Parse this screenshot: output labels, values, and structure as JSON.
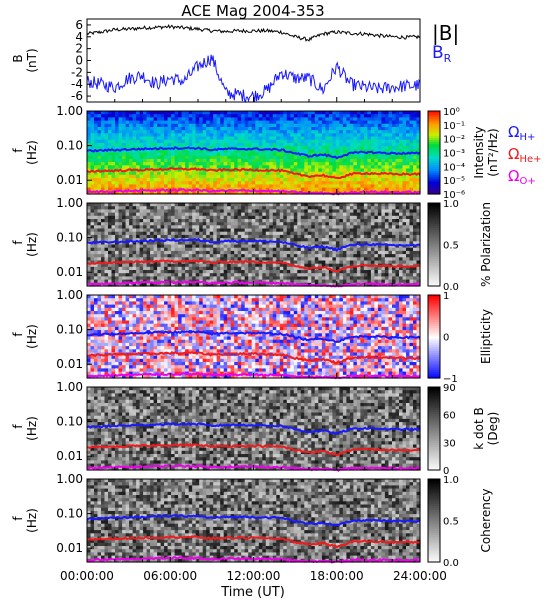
{
  "chart_data": {
    "title": "ACE Mag 2004-353",
    "type": "line",
    "xlabel": "Time (UT)",
    "x_range_hours": [
      0,
      24
    ],
    "x_ticks": [
      "00:00:00",
      "06:00:00",
      "12:00:00",
      "18:00:00",
      "24:00:00"
    ],
    "panels": [
      {
        "kind": "timeseries",
        "ylabel_main": "B",
        "ylabel_unit": "(nT)",
        "ylim": [
          -7,
          7
        ],
        "y_ticks": [
          "6",
          "4",
          "2",
          "0",
          "-2",
          "-4",
          "-6"
        ],
        "series": [
          {
            "name": "|B|",
            "color": "#000000",
            "x": [
              0,
              1,
              2,
              3,
              4,
              5,
              6,
              7,
              8,
              9,
              10,
              11,
              12,
              13,
              14,
              15,
              16,
              17,
              18,
              19,
              20,
              21,
              22,
              23,
              24
            ],
            "y": [
              4.5,
              4.8,
              5.2,
              5.3,
              5.5,
              5.6,
              5.7,
              5.5,
              5.3,
              5.0,
              4.9,
              5.0,
              5.0,
              5.0,
              4.8,
              4.0,
              3.5,
              4.5,
              4.8,
              4.6,
              4.5,
              4.2,
              4.0,
              3.9,
              4.0
            ]
          },
          {
            "name": "B",
            "sub": "R",
            "color": "#1a1aff",
            "x": [
              0,
              1,
              2,
              3,
              4,
              5,
              6,
              7,
              8,
              9,
              10,
              11,
              12,
              13,
              14,
              15,
              16,
              17,
              18,
              19,
              20,
              21,
              22,
              23,
              24
            ],
            "y": [
              -3.5,
              -4,
              -4.5,
              -3,
              -2.5,
              -4,
              -3,
              -3.5,
              -1,
              0.5,
              -5.5,
              -5.8,
              -6,
              -5,
              -2,
              -3,
              -3,
              -5,
              -1,
              -4,
              -4.5,
              -4.8,
              -4.5,
              -4.3,
              -4.2
            ]
          }
        ]
      },
      {
        "kind": "spectrogram",
        "colormap": "rainbow",
        "ylabel_main": "f",
        "ylabel_unit": "(Hz)",
        "y_scale": "log",
        "ylim": [
          0.004,
          1.0
        ],
        "y_ticks": [
          "1.00",
          "0.10",
          "0.01"
        ],
        "colorbar_ticks": [
          "10⁰",
          "10⁻¹",
          "10⁻²",
          "10⁻³",
          "10⁻⁴",
          "10⁻⁵",
          "10⁻⁶"
        ],
        "colorbar_label": [
          "Intensity",
          "(nT²/Hz)"
        ],
        "legend": [
          {
            "symbol": "Ω",
            "sub": "H+",
            "color": "#1a1aff"
          },
          {
            "symbol": "Ω",
            "sub": "He+",
            "color": "#ee1c1c"
          },
          {
            "symbol": "Ω",
            "sub": "O+",
            "color": "#ee00ee"
          }
        ]
      },
      {
        "kind": "spectrogram",
        "colormap": "gray",
        "ylabel_main": "f",
        "ylabel_unit": "(Hz)",
        "y_scale": "log",
        "ylim": [
          0.004,
          1.0
        ],
        "y_ticks": [
          "1.00",
          "0.10",
          "0.01"
        ],
        "colorbar_ticks": [
          "1.0",
          "0.5",
          "0.0"
        ],
        "colorbar_label": [
          "% Polarization"
        ]
      },
      {
        "kind": "spectrogram",
        "colormap": "bwr",
        "ylabel_main": "f",
        "ylabel_unit": "(Hz)",
        "y_scale": "log",
        "ylim": [
          0.004,
          1.0
        ],
        "y_ticks": [
          "1.00",
          "0.10",
          "0.01"
        ],
        "colorbar_ticks": [
          "1",
          "0",
          "−1"
        ],
        "colorbar_label": [
          "Ellipticity"
        ]
      },
      {
        "kind": "spectrogram",
        "colormap": "gray_r",
        "ylabel_main": "f",
        "ylabel_unit": "(Hz)",
        "y_scale": "log",
        "ylim": [
          0.004,
          1.0
        ],
        "y_ticks": [
          "1.00",
          "0.10",
          "0.01"
        ],
        "colorbar_ticks": [
          "90",
          "60",
          "30",
          "0"
        ],
        "colorbar_label": [
          "k dot B",
          "(Deg)"
        ]
      },
      {
        "kind": "spectrogram",
        "colormap": "gray",
        "ylabel_main": "f",
        "ylabel_unit": "(Hz)",
        "y_scale": "log",
        "ylim": [
          0.004,
          1.0
        ],
        "y_ticks": [
          "1.00",
          "0.10",
          "0.01"
        ],
        "colorbar_ticks": [
          "1.0",
          "0.5",
          "0.0"
        ],
        "colorbar_label": [
          "Coherency"
        ]
      }
    ],
    "gyrofrequency_lines": [
      {
        "name": "H+",
        "color": "#1a1aff",
        "x": [
          0,
          2,
          4,
          6,
          8,
          9,
          10,
          12,
          14,
          15,
          16,
          17,
          18,
          19,
          20,
          22,
          24
        ],
        "f": [
          0.07,
          0.075,
          0.08,
          0.085,
          0.085,
          0.075,
          0.08,
          0.08,
          0.075,
          0.06,
          0.05,
          0.055,
          0.045,
          0.06,
          0.065,
          0.06,
          0.06
        ]
      },
      {
        "name": "He+",
        "color": "#ee1c1c",
        "x": [
          0,
          2,
          4,
          6,
          8,
          9,
          10,
          12,
          14,
          15,
          16,
          17,
          18,
          19,
          20,
          22,
          24
        ],
        "f": [
          0.018,
          0.019,
          0.02,
          0.021,
          0.021,
          0.019,
          0.02,
          0.02,
          0.019,
          0.015,
          0.013,
          0.014,
          0.011,
          0.015,
          0.016,
          0.015,
          0.015
        ]
      },
      {
        "name": "O+",
        "color": "#ee00ee",
        "x": [
          0,
          2,
          4,
          6,
          8,
          9,
          10,
          12,
          14,
          15,
          16,
          17,
          18,
          19,
          20,
          22,
          24
        ],
        "f": [
          0.0045,
          0.0048,
          0.005,
          0.0052,
          0.0052,
          0.0048,
          0.005,
          0.005,
          0.0048,
          0.0045,
          0.0042,
          0.0043,
          0.004,
          0.0045,
          0.0046,
          0.0045,
          0.0045
        ]
      }
    ]
  }
}
